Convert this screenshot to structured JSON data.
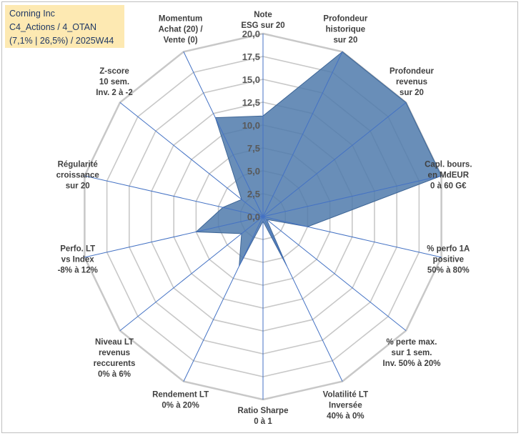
{
  "header": {
    "line1": "Corning Inc",
    "line2": "C4_Actions / 4_OTAN",
    "line3": "(7,1% | 26,5%) / 2025W44"
  },
  "chart_data": {
    "type": "radar",
    "series_color": "#4f7aac",
    "grid_color": "#c8c8c8",
    "axis_color": "#4472c4",
    "rmin": 0,
    "rmax": 20,
    "tick_step": 2.5,
    "tick_labels": [
      "0,0",
      "2,5",
      "5,0",
      "7,5",
      "10,0",
      "12,5",
      "15,0",
      "17,5",
      "20,0"
    ],
    "axes": [
      {
        "label": [
          "Note",
          "ESG sur 20"
        ],
        "value": 11
      },
      {
        "label": [
          "Profondeur",
          "historique",
          "sur 20"
        ],
        "value": 20
      },
      {
        "label": [
          "Profondeur",
          "revenus",
          "sur 20"
        ],
        "value": 20
      },
      {
        "label": [
          "Capl. bours.",
          "en MdEUR",
          "0 à 60 G€"
        ],
        "value": 20
      },
      {
        "label": [
          "% perfo 1A",
          "positive",
          "50% à 80%"
        ],
        "value": 5
      },
      {
        "label": [
          "% perte max.",
          "sur 1 sem.",
          "Inv. 50% à 20%"
        ],
        "value": 0.5
      },
      {
        "label": [
          "Volatilité LT",
          "Inversée",
          "40% à 0%"
        ],
        "value": 6
      },
      {
        "label": [
          "Ratio Sharpe",
          "0 à 1"
        ],
        "value": 0.5
      },
      {
        "label": [
          "Rendement LT",
          "0% à 20%"
        ],
        "value": 6
      },
      {
        "label": [
          "Niveau LT",
          "revenus",
          "reccurents",
          "0% à 6%"
        ],
        "value": 3
      },
      {
        "label": [
          "Perfo. LT",
          "vs Index",
          "-8% à 12%"
        ],
        "value": 7.5
      },
      {
        "label": [
          "Régularité",
          "croissance",
          "sur 20"
        ],
        "value": 4.5
      },
      {
        "label": [
          "Z-score",
          "10 sem.",
          "Inv. 2 à -2"
        ],
        "value": 3
      },
      {
        "label": [
          "Momentum",
          "Achat (20) /",
          "Vente (0)"
        ],
        "value": 12
      }
    ]
  }
}
